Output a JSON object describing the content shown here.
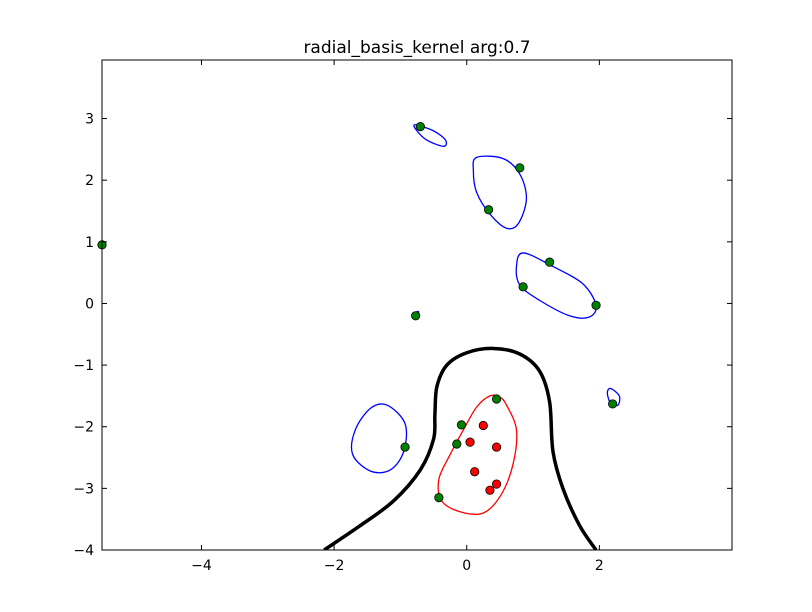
{
  "chart_data": {
    "type": "scatter",
    "title": "radial_basis_kernel arg:0.7",
    "xlabel": "",
    "ylabel": "",
    "xlim": [
      -5.5,
      4.0
    ],
    "ylim": [
      -4.0,
      3.95
    ],
    "grid": false,
    "x_ticks": [
      -4,
      -2,
      0,
      2
    ],
    "y_ticks": [
      -4,
      -3,
      -2,
      -1,
      0,
      1,
      2,
      3
    ],
    "x_tick_labels": [
      "−4",
      "−2",
      "0",
      "2"
    ],
    "y_tick_labels": [
      "−4",
      "−3",
      "−2",
      "−1",
      "0",
      "1",
      "2",
      "3"
    ],
    "colors": {
      "green_points": "#008000",
      "red_points": "#ff0000",
      "decision_boundary": "#000000",
      "blue_margin": "#0000ff",
      "red_margin": "#ff0000"
    },
    "series": [
      {
        "marker": "green-circle",
        "points": [
          [
            -5.5,
            0.95
          ],
          [
            -0.7,
            2.87
          ],
          [
            0.8,
            2.2
          ],
          [
            0.33,
            1.52
          ],
          [
            1.25,
            0.67
          ],
          [
            0.85,
            0.27
          ],
          [
            1.95,
            -0.03
          ],
          [
            -0.77,
            -0.2
          ],
          [
            2.2,
            -1.63
          ],
          [
            -0.93,
            -2.33
          ],
          [
            -0.08,
            -1.97
          ],
          [
            0.45,
            -1.55
          ],
          [
            -0.15,
            -2.28
          ],
          [
            -0.42,
            -3.15
          ]
        ]
      },
      {
        "marker": "red-circle",
        "points": [
          [
            0.25,
            -1.98
          ],
          [
            0.05,
            -2.25
          ],
          [
            0.45,
            -2.33
          ],
          [
            0.12,
            -2.73
          ],
          [
            0.45,
            -2.93
          ],
          [
            0.35,
            -3.03
          ]
        ]
      }
    ],
    "curves": [
      {
        "role": "decision-boundary",
        "style": "black-thick",
        "points": [
          [
            -2.15,
            -4.0
          ],
          [
            -1.6,
            -3.6
          ],
          [
            -1.1,
            -3.2
          ],
          [
            -0.7,
            -2.7
          ],
          [
            -0.5,
            -2.2
          ],
          [
            -0.48,
            -1.8
          ],
          [
            -0.45,
            -1.35
          ],
          [
            -0.3,
            -1.0
          ],
          [
            0.0,
            -0.8
          ],
          [
            0.4,
            -0.73
          ],
          [
            0.8,
            -0.82
          ],
          [
            1.1,
            -1.1
          ],
          [
            1.25,
            -1.6
          ],
          [
            1.3,
            -2.4
          ],
          [
            1.45,
            -3.0
          ],
          [
            1.7,
            -3.6
          ],
          [
            1.95,
            -4.0
          ]
        ]
      },
      {
        "role": "margin-contour",
        "style": "red",
        "closed": true,
        "points": [
          [
            0.6,
            -1.65
          ],
          [
            0.75,
            -2.05
          ],
          [
            0.7,
            -2.6
          ],
          [
            0.52,
            -3.1
          ],
          [
            0.25,
            -3.4
          ],
          [
            -0.1,
            -3.38
          ],
          [
            -0.38,
            -3.2
          ],
          [
            -0.42,
            -2.85
          ],
          [
            -0.25,
            -2.45
          ],
          [
            -0.05,
            -2.05
          ],
          [
            0.15,
            -1.68
          ],
          [
            0.35,
            -1.5
          ],
          [
            0.5,
            -1.52
          ]
        ]
      },
      {
        "role": "margin-contour",
        "style": "blue",
        "closed": true,
        "points": [
          [
            -1.2,
            -1.65
          ],
          [
            -0.93,
            -1.95
          ],
          [
            -0.95,
            -2.4
          ],
          [
            -1.15,
            -2.7
          ],
          [
            -1.45,
            -2.72
          ],
          [
            -1.72,
            -2.45
          ],
          [
            -1.68,
            -2.05
          ],
          [
            -1.45,
            -1.7
          ]
        ]
      },
      {
        "role": "margin-contour",
        "style": "blue",
        "closed": true,
        "points": [
          [
            2.17,
            -1.38
          ],
          [
            2.3,
            -1.5
          ],
          [
            2.28,
            -1.65
          ],
          [
            2.17,
            -1.62
          ],
          [
            2.12,
            -1.45
          ]
        ]
      },
      {
        "role": "margin-contour",
        "style": "blue",
        "closed": true,
        "points": [
          [
            -0.78,
            2.9
          ],
          [
            -0.5,
            2.8
          ],
          [
            -0.32,
            2.65
          ],
          [
            -0.35,
            2.55
          ],
          [
            -0.6,
            2.65
          ],
          [
            -0.75,
            2.8
          ]
        ]
      },
      {
        "role": "margin-contour",
        "style": "blue",
        "closed": true,
        "points": [
          [
            0.15,
            2.37
          ],
          [
            0.55,
            2.35
          ],
          [
            0.8,
            2.1
          ],
          [
            0.9,
            1.7
          ],
          [
            0.78,
            1.3
          ],
          [
            0.6,
            1.22
          ],
          [
            0.35,
            1.45
          ],
          [
            0.15,
            1.8
          ],
          [
            0.1,
            2.15
          ]
        ]
      },
      {
        "role": "margin-contour",
        "style": "blue",
        "closed": true,
        "points": [
          [
            0.85,
            0.82
          ],
          [
            1.3,
            0.6
          ],
          [
            1.75,
            0.32
          ],
          [
            1.95,
            -0.03
          ],
          [
            1.85,
            -0.22
          ],
          [
            1.55,
            -0.2
          ],
          [
            1.1,
            0.05
          ],
          [
            0.8,
            0.3
          ],
          [
            0.75,
            0.6
          ]
        ]
      },
      {
        "role": "margin-contour",
        "style": "blue",
        "closed": true,
        "points": [
          [
            -0.8,
            -0.18
          ],
          [
            -0.73,
            -0.13
          ],
          [
            -0.74,
            -0.22
          ]
        ]
      }
    ]
  }
}
